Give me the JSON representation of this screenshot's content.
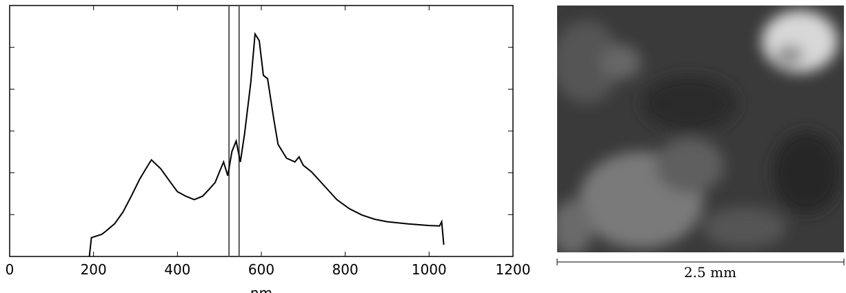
{
  "chart_data": {
    "type": "line",
    "xlabel": "nm",
    "x": [
      190,
      195,
      220,
      230,
      250,
      270,
      290,
      310,
      325,
      338,
      360,
      380,
      400,
      420,
      440,
      460,
      475,
      490,
      500,
      510,
      520,
      530,
      540,
      550,
      560,
      575,
      585,
      595,
      605,
      615,
      630,
      640,
      660,
      680,
      690,
      700,
      720,
      750,
      780,
      810,
      840,
      870,
      900,
      950,
      1000,
      1025,
      1030,
      1035
    ],
    "series": [
      {
        "color": "#000000",
        "values": [
          0,
          0.45,
          0.53,
          0.61,
          0.78,
          1.06,
          1.44,
          1.85,
          2.1,
          2.31,
          2.1,
          1.82,
          1.55,
          1.44,
          1.36,
          1.44,
          1.6,
          1.77,
          2.02,
          2.26,
          1.93,
          2.51,
          2.76,
          2.26,
          2.93,
          4.17,
          5.32,
          5.16,
          4.33,
          4.25,
          3.26,
          2.68,
          2.35,
          2.26,
          2.38,
          2.18,
          2.02,
          1.69,
          1.36,
          1.14,
          0.99,
          0.89,
          0.83,
          0.78,
          0.74,
          0.73,
          0.83,
          0.28
        ]
      }
    ],
    "markers": [
      523,
      547
    ],
    "xlim": [
      0,
      1200
    ],
    "xticks": [
      0,
      200,
      400,
      600,
      800,
      1000,
      1200
    ],
    "ylim": [
      0,
      6
    ],
    "yticks": [
      1,
      2,
      3,
      4,
      5
    ]
  },
  "image": {
    "scale_bar_label": "2.5 mm"
  }
}
